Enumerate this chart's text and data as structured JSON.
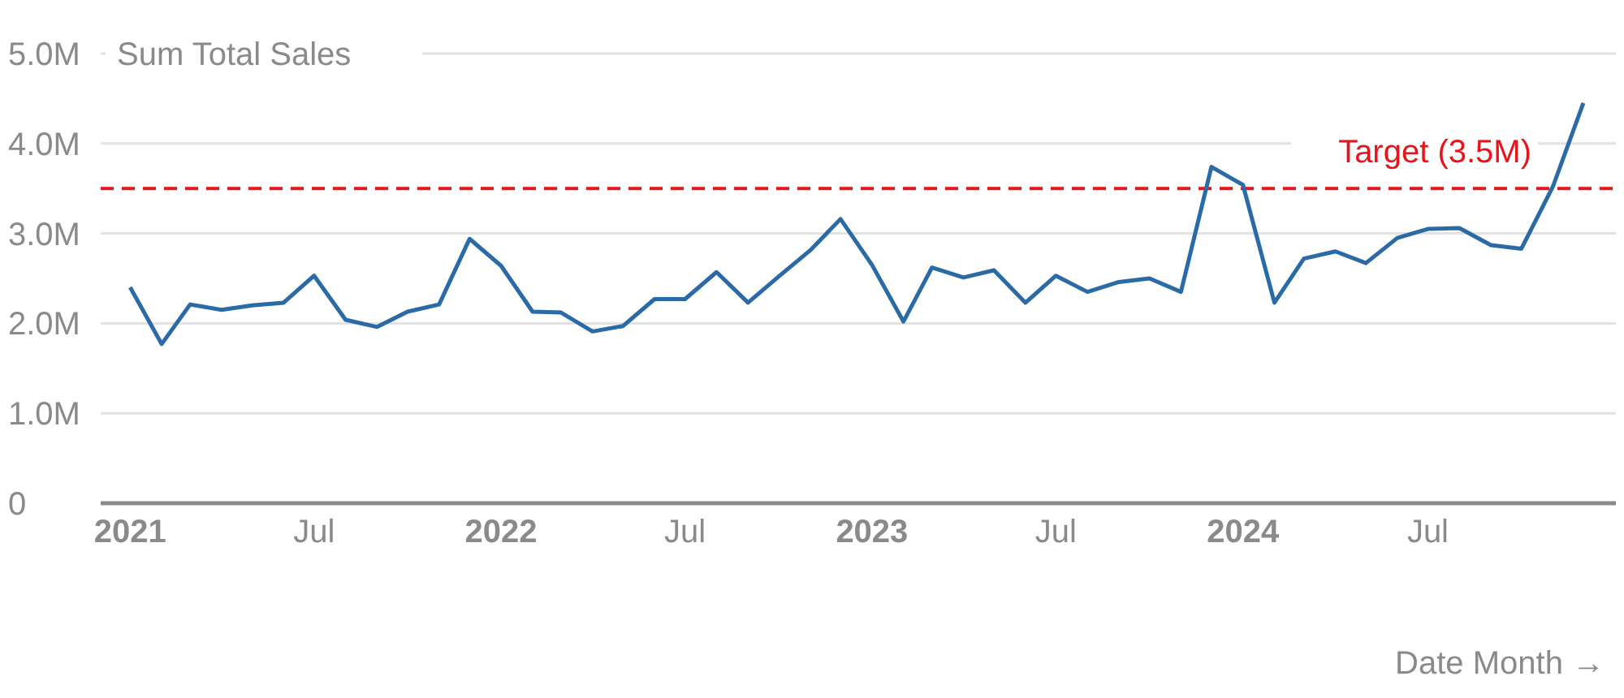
{
  "chart_data": {
    "type": "line",
    "ylabel": "Sum Total Sales",
    "xlabel": "Date Month →",
    "x": [
      "2021-01",
      "2021-02",
      "2021-03",
      "2021-04",
      "2021-05",
      "2021-06",
      "2021-07",
      "2021-08",
      "2021-09",
      "2021-10",
      "2021-11",
      "2021-12",
      "2022-01",
      "2022-02",
      "2022-03",
      "2022-04",
      "2022-05",
      "2022-06",
      "2022-07",
      "2022-08",
      "2022-09",
      "2022-10",
      "2022-11",
      "2022-12",
      "2023-01",
      "2023-02",
      "2023-03",
      "2023-04",
      "2023-05",
      "2023-06",
      "2023-07",
      "2023-08",
      "2023-09",
      "2023-10",
      "2023-11",
      "2023-12",
      "2024-01",
      "2024-02",
      "2024-03",
      "2024-04",
      "2024-05",
      "2024-06",
      "2024-07",
      "2024-08",
      "2024-09",
      "2024-10",
      "2024-11",
      "2024-12"
    ],
    "series": [
      {
        "color": "#2a6aa6",
        "values": [
          2.4,
          1.77,
          2.21,
          2.15,
          2.2,
          2.23,
          2.53,
          2.04,
          1.96,
          2.13,
          2.21,
          2.94,
          2.64,
          2.13,
          2.12,
          1.91,
          1.97,
          2.27,
          2.27,
          2.57,
          2.23,
          2.52,
          2.81,
          3.16,
          2.65,
          2.02,
          2.62,
          2.51,
          2.59,
          2.23,
          2.53,
          2.35,
          2.46,
          2.5,
          2.35,
          3.74,
          3.54,
          2.23,
          2.72,
          2.8,
          2.67,
          2.95,
          3.05,
          3.06,
          2.87,
          2.83,
          3.52,
          4.45
        ]
      }
    ],
    "xlim": [
      "2020-12-03",
      "2025-01-02"
    ],
    "xticks": [
      {
        "value": "2021-01",
        "label": "2021"
      },
      {
        "value": "2021-07",
        "label": "Jul"
      },
      {
        "value": "2022-01",
        "label": "2022"
      },
      {
        "value": "2022-07",
        "label": "Jul"
      },
      {
        "value": "2023-01",
        "label": "2023"
      },
      {
        "value": "2023-07",
        "label": "Jul"
      },
      {
        "value": "2024-01",
        "label": "2024"
      },
      {
        "value": "2024-07",
        "label": "Jul"
      }
    ],
    "ylim": [
      0,
      5
    ],
    "yticks": [
      {
        "value": 0,
        "label": "0"
      },
      {
        "value": 1,
        "label": "1.0M"
      },
      {
        "value": 2,
        "label": "2.0M"
      },
      {
        "value": 3,
        "label": "3.0M"
      },
      {
        "value": 4,
        "label": "4.0M"
      },
      {
        "value": 5,
        "label": "5.0M"
      }
    ],
    "grid": "y",
    "marker": "none",
    "line_style": "solid",
    "ref_lines": [
      {
        "axis": "y",
        "value": 3.5,
        "label": "Target (3.5M)",
        "color": "#e8141c",
        "line_style": "dashed"
      }
    ]
  }
}
